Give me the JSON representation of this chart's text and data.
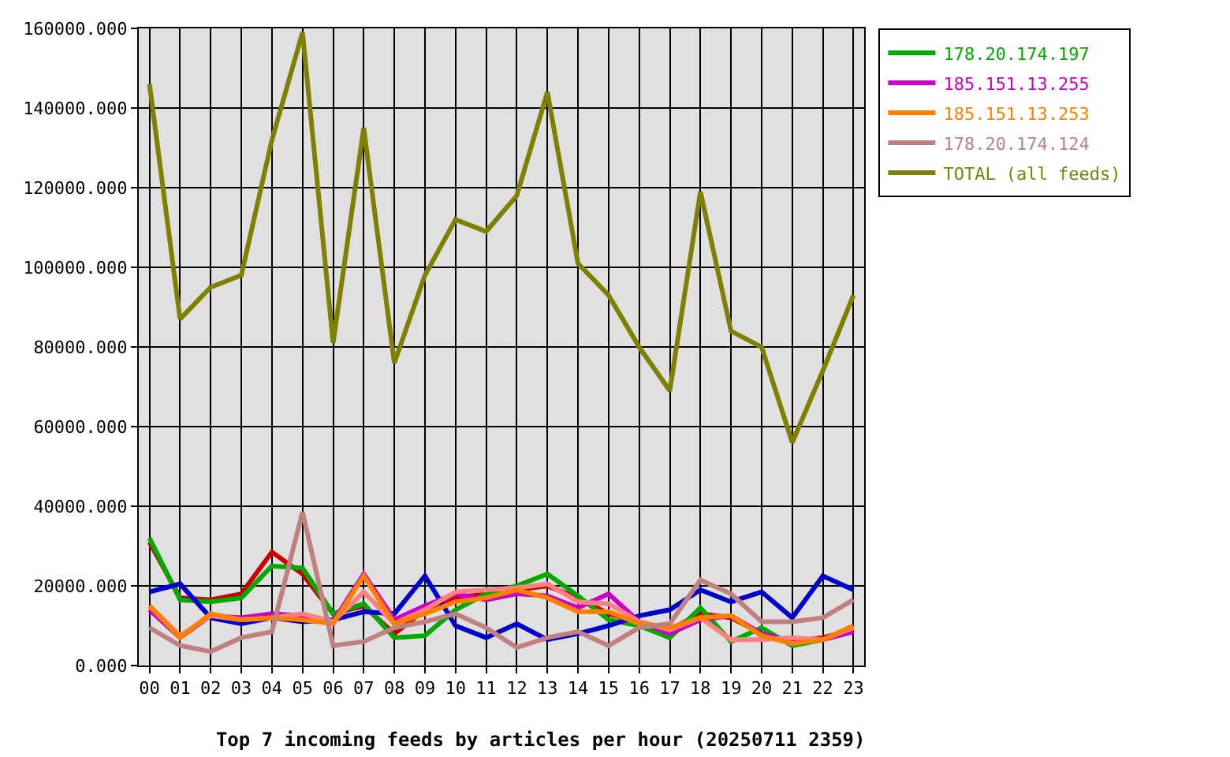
{
  "chart_data": {
    "type": "line",
    "title": "Top 7 incoming feeds by articles per hour (20250711 2359)",
    "categories": [
      "00",
      "01",
      "02",
      "03",
      "04",
      "05",
      "06",
      "07",
      "08",
      "09",
      "10",
      "11",
      "12",
      "13",
      "14",
      "15",
      "16",
      "17",
      "18",
      "19",
      "20",
      "21",
      "22",
      "23"
    ],
    "ylim": [
      0,
      160000
    ],
    "yticks": [
      {
        "value": 0,
        "label": "0.000"
      },
      {
        "value": 20000,
        "label": "20000.000"
      },
      {
        "value": 40000,
        "label": "40000.000"
      },
      {
        "value": 60000,
        "label": "60000.000"
      },
      {
        "value": 80000,
        "label": "80000.000"
      },
      {
        "value": 100000,
        "label": "100000.000"
      },
      {
        "value": 120000,
        "label": "120000.000"
      },
      {
        "value": 140000,
        "label": "140000.000"
      },
      {
        "value": 160000,
        "label": "160000.000"
      }
    ],
    "grid": true,
    "legend": "top right",
    "line_style": "solid",
    "series": [
      {
        "color": "#cc0000",
        "values": [
          31000,
          17000,
          16500,
          18000,
          28500,
          23000,
          13000,
          15000,
          8000,
          14000,
          17000,
          18000,
          19000,
          20000,
          17000,
          13000,
          11000,
          9000,
          13000,
          12000,
          8000,
          6000,
          7000,
          9000
        ]
      },
      {
        "name": "178.20.174.197",
        "color": "#00aa00",
        "values": [
          32000,
          16500,
          16000,
          17000,
          25000,
          24500,
          13000,
          15500,
          7000,
          7500,
          14000,
          18000,
          20000,
          23000,
          17500,
          11500,
          10000,
          7000,
          14500,
          6000,
          9500,
          5000,
          6500,
          9500
        ]
      },
      {
        "color": "#0000cc",
        "values": [
          18500,
          20500,
          12000,
          10500,
          12000,
          11000,
          11500,
          13500,
          13000,
          22500,
          10000,
          7000,
          10500,
          6500,
          8000,
          10000,
          12500,
          14000,
          19000,
          16000,
          18500,
          12000,
          22500,
          19000
        ]
      },
      {
        "name": "185.151.13.255",
        "color": "#cc00cc",
        "values": [
          14000,
          7000,
          12500,
          12000,
          13000,
          12500,
          11000,
          23000,
          11500,
          15000,
          18000,
          16500,
          18000,
          17500,
          14500,
          18000,
          11000,
          8000,
          11500,
          12500,
          8000,
          6000,
          6500,
          8500
        ]
      },
      {
        "color": "#ff8080",
        "values": [
          15000,
          7500,
          12500,
          11500,
          12000,
          13000,
          11000,
          18500,
          10500,
          14000,
          18500,
          19000,
          19500,
          20500,
          16000,
          15500,
          11000,
          9000,
          12000,
          6500,
          6500,
          7000,
          6500,
          9500
        ]
      },
      {
        "name": "185.151.13.253",
        "color": "#ff8000",
        "values": [
          15000,
          7000,
          13000,
          11500,
          12000,
          11500,
          10500,
          22500,
          10500,
          13000,
          16000,
          17000,
          19000,
          17000,
          13500,
          13500,
          10500,
          9500,
          12000,
          12500,
          7500,
          5500,
          6500,
          10000
        ]
      },
      {
        "name": "178.20.174.124",
        "color": "#c08080",
        "values": [
          9500,
          5000,
          3500,
          7000,
          8500,
          38500,
          5000,
          6000,
          9500,
          11000,
          13000,
          9500,
          4500,
          7000,
          8500,
          5000,
          9500,
          10500,
          21500,
          18000,
          11000,
          11000,
          12000,
          16500
        ]
      },
      {
        "name": "TOTAL (all feeds)",
        "color": "#808000",
        "values": [
          146000,
          87000,
          95000,
          98000,
          132000,
          159000,
          81000,
          135000,
          76000,
          98000,
          112000,
          109000,
          118000,
          144000,
          101000,
          93000,
          80000,
          69000,
          119000,
          84000,
          80000,
          56000,
          74000,
          93000
        ]
      }
    ]
  }
}
